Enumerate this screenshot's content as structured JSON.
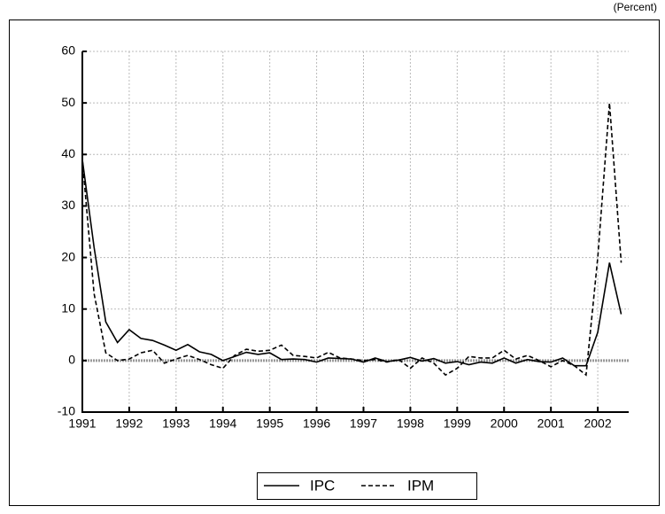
{
  "chart_data": {
    "type": "line",
    "subtitle": "(Percent)",
    "x": [
      1991,
      1991.25,
      1991.5,
      1991.75,
      1992,
      1992.25,
      1992.5,
      1992.75,
      1993,
      1993.25,
      1993.5,
      1993.75,
      1994,
      1994.25,
      1994.5,
      1994.75,
      1995,
      1995.25,
      1995.5,
      1995.75,
      1996,
      1996.25,
      1996.5,
      1996.75,
      1997,
      1997.25,
      1997.5,
      1997.75,
      1998,
      1998.25,
      1998.5,
      1998.75,
      1999,
      1999.25,
      1999.5,
      1999.75,
      2000,
      2000.25,
      2000.5,
      2000.75,
      2001,
      2001.25,
      2001.5,
      2001.75,
      2002,
      2002.25,
      2002.5
    ],
    "series": [
      {
        "name": "IPC",
        "color": "#000000",
        "line_style": "solid",
        "values": [
          39,
          22,
          7.5,
          3.5,
          6,
          4.3,
          3.9,
          3,
          2,
          3.1,
          1.7,
          1.2,
          0,
          0.8,
          1.6,
          1.2,
          1.5,
          0.2,
          0.3,
          0.2,
          -0.3,
          0.5,
          0.4,
          0.3,
          -0.3,
          0.5,
          -0.2,
          0.1,
          0.6,
          -0.1,
          0.4,
          -0.5,
          -0.2,
          -0.8,
          -0.3,
          -0.5,
          0.5,
          -0.5,
          0.2,
          -0.2,
          -0.3,
          0.5,
          -1,
          -1,
          5.5,
          19,
          9
        ]
      },
      {
        "name": "IPM",
        "color": "#000000",
        "line_style": "dashed",
        "values": [
          39,
          13,
          1.5,
          0,
          0.3,
          1.5,
          2,
          -0.5,
          0.3,
          1,
          0.2,
          -0.8,
          -1.5,
          1,
          2.2,
          1.8,
          2,
          3,
          1,
          0.8,
          0.5,
          1.6,
          0.5,
          0.3,
          0,
          0.2,
          -0.3,
          0.2,
          -1.5,
          0.5,
          -0.5,
          -2.8,
          -1.5,
          0.8,
          0.5,
          0.5,
          2,
          0.3,
          1,
          0,
          -1.2,
          0,
          -1,
          -2.8,
          20,
          50,
          19
        ]
      }
    ],
    "xlim": [
      1991,
      2002.66
    ],
    "xticks": [
      1991,
      1992,
      1993,
      1994,
      1995,
      1996,
      1997,
      1998,
      1999,
      2000,
      2001,
      2002
    ],
    "ylim": [
      -10,
      60
    ],
    "yticks": [
      -10,
      0,
      10,
      20,
      30,
      40,
      50,
      60
    ],
    "grid": true,
    "legend": "bottom"
  }
}
